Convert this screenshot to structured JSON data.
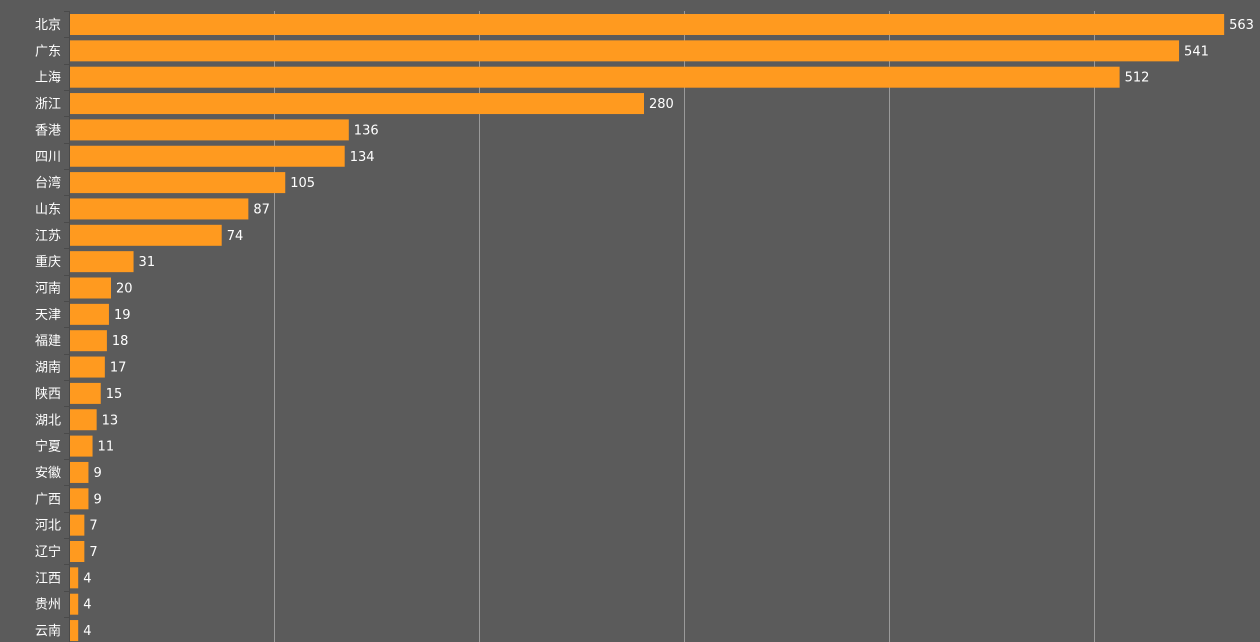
{
  "chart_data": {
    "type": "bar",
    "orientation": "horizontal",
    "categories": [
      "北京",
      "广东",
      "上海",
      "浙江",
      "香港",
      "四川",
      "台湾",
      "山东",
      "江苏",
      "重庆",
      "河南",
      "天津",
      "福建",
      "湖南",
      "陕西",
      "湖北",
      "宁夏",
      "安徽",
      "广西",
      "河北",
      "辽宁",
      "江西",
      "贵州",
      "云南"
    ],
    "values": [
      563,
      541,
      512,
      280,
      136,
      134,
      105,
      87,
      74,
      31,
      20,
      19,
      18,
      17,
      15,
      13,
      11,
      9,
      9,
      7,
      7,
      4,
      4,
      4
    ],
    "data_labels": [
      "563",
      "541",
      "512",
      "280",
      "136",
      "134",
      "105",
      "87",
      "74",
      "31",
      "20",
      "19",
      "18",
      "17",
      "15",
      "13",
      "11",
      "9",
      "9",
      "7",
      "7",
      "4",
      "4",
      "4"
    ],
    "xlim": [
      0,
      600
    ],
    "x_gridlines": [
      100,
      200,
      300,
      400,
      500
    ],
    "grid": true,
    "legend": "none",
    "colors": {
      "background": "#5b5b5b",
      "bar": "#ff9a1f",
      "grid": "#9a9a9a",
      "text": "#ffffff"
    }
  }
}
